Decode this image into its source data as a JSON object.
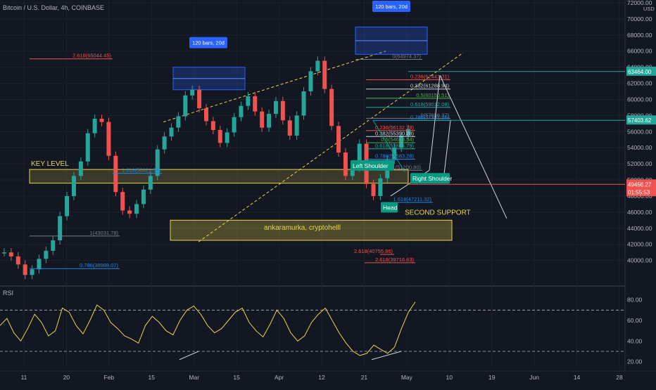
{
  "header": {
    "title": "Bitcoin / U.S. Dollar, 4h, COINBASE"
  },
  "colors": {
    "bg": "#131722",
    "up": "#26a69a",
    "down": "#ef5350",
    "grid": "#1e222d",
    "yellow": "#e8d44d",
    "blue": "#2962ff",
    "white": "#d1d4dc",
    "teal": "#089981"
  },
  "chart_data": [
    {
      "type": "line",
      "title": "Bitcoin / U.S. Dollar, 4h, COINBASE",
      "ylabel": "USD",
      "ylim": [
        37000,
        72000
      ],
      "grid": true,
      "y_ticks": [
        "72000.00",
        "70000.00",
        "68000.00",
        "66000.00",
        "64000.00",
        "62000.00",
        "60000.00",
        "58000.00",
        "56000.00",
        "54000.00",
        "52000.00",
        "50000.00",
        "48000.00",
        "46000.00",
        "44000.00",
        "42000.00",
        "40000.00"
      ],
      "x_ticks": [
        "11",
        "20",
        "Feb",
        "15",
        "Mar",
        "15",
        "Apr",
        "12",
        "21",
        "May",
        "10",
        "19",
        "Jun",
        "14",
        "28"
      ],
      "series": [
        {
          "values": [
            41000,
            40500,
            39500,
            38200,
            38900,
            40200,
            41200,
            42500,
            45500,
            48000,
            50500,
            52300,
            55800,
            57600,
            57200,
            53000,
            48500,
            46200,
            45800,
            47000,
            48800,
            50500,
            53800,
            55400,
            56500,
            57900,
            60500,
            61200,
            58900,
            57300,
            56200,
            54600,
            55900,
            57800,
            59200,
            60400,
            58500,
            56500,
            58200,
            59800,
            57400,
            55500,
            58000,
            61000,
            63500,
            64800,
            61300,
            56700,
            53400,
            50500,
            51500,
            54500,
            49500,
            48000,
            50200,
            52500,
            54000,
            55500,
            56300
          ]
        }
      ],
      "price_labels": [
        {
          "value": 63464.0,
          "text": "63464.00"
        },
        {
          "value": 57403.62,
          "text": "57403.62"
        },
        {
          "value": 49456.27,
          "text": "49456.27",
          "sub": "01:55:53"
        }
      ],
      "fib_levels": [
        {
          "text": "2.618(65044.45)",
          "value": 65044.45
        },
        {
          "text": "0(64974.37)",
          "value": 64974.37
        },
        {
          "text": "0.236(62441.01)",
          "value": 62441.01
        },
        {
          "text": "0.382(61288.94)",
          "value": 61288.94
        },
        {
          "text": "0.5(60150.51)",
          "value": 60150.51
        },
        {
          "text": "0.618(59012.08)",
          "value": 59012.08
        },
        {
          "text": "0(57656.37)",
          "value": 57656.37
        },
        {
          "text": "0.786(57391.26)",
          "value": 57391.26
        },
        {
          "text": "0.236(56132.78)",
          "value": 56132.78
        },
        {
          "text": "0.382(55390.28)",
          "value": 55390.28
        },
        {
          "text": "0.5(54618.54)",
          "value": 54618.54
        },
        {
          "text": "0.618(53866.79)",
          "value": 53866.79
        },
        {
          "text": "0.786(52583.28)",
          "value": 52583.28
        },
        {
          "text": "1.618(50821.54)",
          "value": 50821.54
        },
        {
          "text": "1(51200.80)",
          "value": 51200.8
        },
        {
          "text": "1.618(47211.32)",
          "value": 47211.32
        },
        {
          "text": "1(43031.78)",
          "value": 43031.78
        },
        {
          "text": "2.618(40755.86)",
          "value": 40755.86
        },
        {
          "text": "0.786(38988.07)",
          "value": 38988.07
        },
        {
          "text": "2.618(39716.63)",
          "value": 39716.63
        }
      ],
      "annotations": {
        "key_level": "KEY LEVEL",
        "second_support": "SECOND SUPPORT",
        "support_box": "ankaramurka, cryptohelll",
        "left_shoulder": "Left Shoulder",
        "head": "Head",
        "right_shoulder": "Right Shoulder",
        "bars_1": "120 bars, 20d",
        "bars_2": "120 bars, 20d"
      }
    },
    {
      "type": "line",
      "title": "RSI",
      "ylim": [
        15,
        90
      ],
      "y_ticks": [
        "80.00",
        "60.00",
        "40.00",
        "20.00"
      ],
      "levels": [
        70,
        30
      ],
      "series": [
        {
          "values": [
            55,
            62,
            48,
            40,
            52,
            66,
            58,
            45,
            50,
            72,
            68,
            55,
            47,
            60,
            75,
            70,
            58,
            52,
            45,
            42,
            38,
            55,
            64,
            58,
            50,
            46,
            60,
            70,
            74,
            66,
            55,
            48,
            52,
            60,
            68,
            72,
            58,
            50,
            44,
            56,
            70,
            62,
            48,
            40,
            45,
            58,
            66,
            72,
            60,
            48,
            38,
            30,
            26,
            28,
            36,
            32,
            28,
            34,
            52,
            68,
            78
          ]
        }
      ]
    }
  ]
}
